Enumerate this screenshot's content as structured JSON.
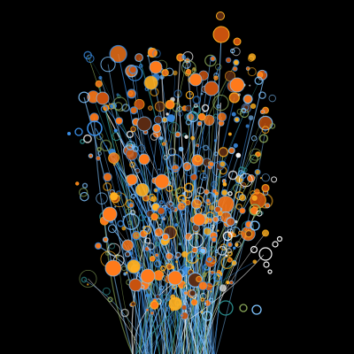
{
  "artwork": {
    "background": "#000000",
    "palette": {
      "orange": "#ff7a1a",
      "orange_dark": "#c8520e",
      "amber": "#ffb020",
      "brown": "#5a2a12",
      "blue": "#3a8ee6",
      "light_blue": "#7fc4ff",
      "teal": "#2a8a8a",
      "green": "#8aa85a",
      "white": "#f4f4f4"
    }
  }
}
